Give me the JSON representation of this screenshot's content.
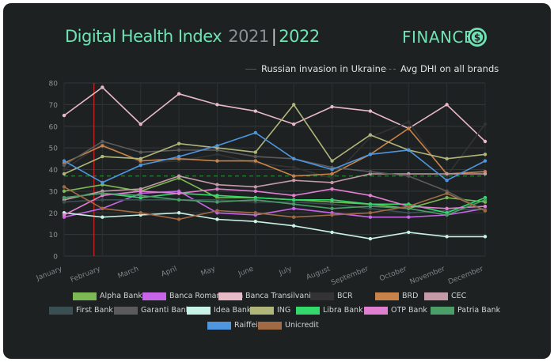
{
  "header": {
    "title": "Digital Health Index",
    "year1": "2021",
    "separator": "|",
    "year2": "2022",
    "category": "FINANCE",
    "category_icon": "dollar-refresh-icon",
    "accent": "#6fe3b4"
  },
  "annotations": {
    "invasion_label": "Russian invasion in Ukraine",
    "invasion_color": "#d62020",
    "avg_label": "Avg DHI on all brands",
    "avg_color": "#2e9a3a"
  },
  "chart_data": {
    "type": "line",
    "categories": [
      "January",
      "February",
      "March",
      "April",
      "May",
      "June",
      "July",
      "August",
      "September",
      "October",
      "November",
      "December"
    ],
    "ylim": [
      0,
      80
    ],
    "yticks": [
      "0",
      "10",
      "20",
      "30",
      "40",
      "50",
      "60",
      "70",
      "80"
    ],
    "invasion_at": 0.78,
    "avg_value": 37,
    "series": [
      {
        "name": "Alpha Bank",
        "color": "#7cb955",
        "values": [
          30,
          33,
          30,
          36,
          27,
          27,
          26,
          25,
          24,
          22,
          27,
          25
        ]
      },
      {
        "name": "Banca Romaneasca",
        "color": "#c765e8",
        "values": [
          18,
          22,
          29,
          30,
          20,
          19,
          22,
          20,
          18,
          18,
          19,
          22
        ]
      },
      {
        "name": "Banca Transilvania",
        "color": "#e8b9c7",
        "values": [
          65,
          78,
          61,
          75,
          70,
          67,
          61,
          69,
          67,
          59,
          70,
          53
        ]
      },
      {
        "name": "BCR",
        "color": "#333333",
        "values": [
          40,
          52,
          43,
          44,
          47,
          43,
          41,
          36,
          55,
          62,
          37,
          61
        ]
      },
      {
        "name": "BRD",
        "color": "#c8834a",
        "values": [
          43,
          51,
          44,
          45,
          44,
          44,
          37,
          38,
          47,
          59,
          38,
          39
        ]
      },
      {
        "name": "CEC",
        "color": "#c49aa6",
        "values": [
          26,
          30,
          31,
          37,
          33,
          32,
          35,
          34,
          38,
          38,
          38,
          38
        ]
      },
      {
        "name": "First Bank",
        "color": "#3a4f52",
        "values": [
          25,
          26,
          26,
          26,
          26,
          25,
          25,
          24,
          22,
          20,
          21,
          22
        ]
      },
      {
        "name": "Garanti Bank",
        "color": "#5b5b5b",
        "values": [
          42,
          53,
          48,
          49,
          49,
          46,
          45,
          41,
          39,
          37,
          30,
          21
        ]
      },
      {
        "name": "Idea Bank",
        "color": "#c9f2e6",
        "values": [
          20,
          18,
          19,
          20,
          17,
          16,
          14,
          11,
          8,
          11,
          9,
          9
        ]
      },
      {
        "name": "ING",
        "color": "#b0b57a",
        "values": [
          38,
          46,
          45,
          52,
          50,
          48,
          70,
          44,
          56,
          49,
          45,
          47
        ]
      },
      {
        "name": "Libra Bank",
        "color": "#33d96b",
        "values": [
          27,
          29,
          27,
          29,
          28,
          27,
          26,
          26,
          24,
          24,
          20,
          27
        ]
      },
      {
        "name": "OTP Bank",
        "color": "#e07fd0",
        "values": [
          19,
          28,
          30,
          29,
          31,
          30,
          28,
          31,
          28,
          23,
          22,
          23
        ]
      },
      {
        "name": "Patria Bank",
        "color": "#4c9e68",
        "values": [
          27,
          29,
          28,
          26,
          25,
          26,
          24,
          22,
          23,
          22,
          19,
          26
        ]
      },
      {
        "name": "Raiffeisen",
        "color": "#4f96e0",
        "values": [
          44,
          34,
          42,
          46,
          51,
          57,
          45,
          40,
          47,
          49,
          35,
          44
        ]
      },
      {
        "name": "Unicredit",
        "color": "#a06a45",
        "values": [
          32,
          22,
          20,
          17,
          21,
          20,
          18,
          19,
          20,
          23,
          29,
          21
        ]
      }
    ]
  }
}
